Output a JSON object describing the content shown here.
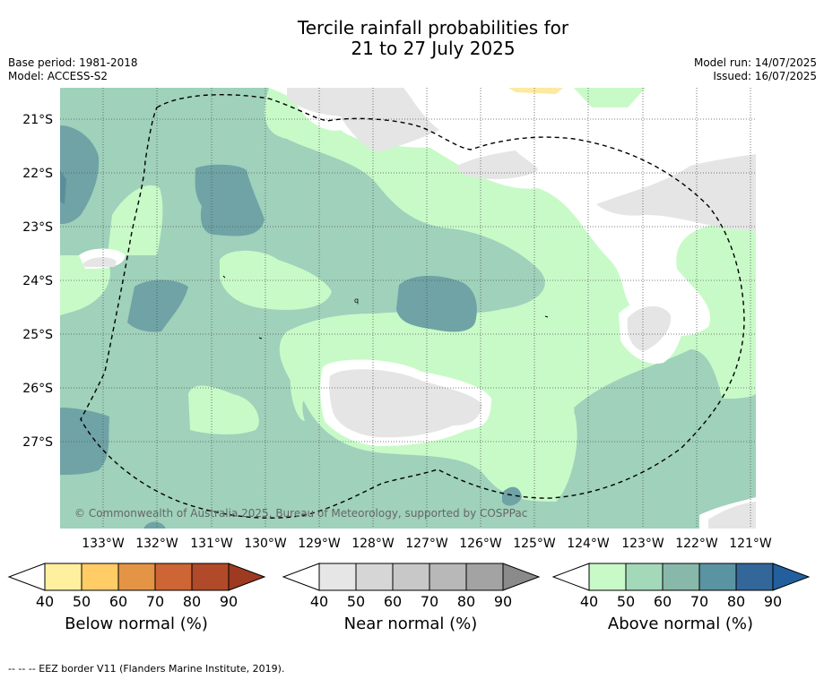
{
  "title": {
    "line1": "Tercile rainfall probabilities for",
    "line2": "21 to 27 July 2025"
  },
  "meta": {
    "base_period": "Base period: 1981-2018",
    "model": "Model: ACCESS-S2",
    "model_run": "Model run: 14/07/2025",
    "issued": "Issued: 16/07/2025"
  },
  "map": {
    "lat_labels": [
      "21°S",
      "22°S",
      "23°S",
      "24°S",
      "25°S",
      "26°S",
      "27°S"
    ],
    "lon_labels": [
      "133°W",
      "132°W",
      "131°W",
      "130°W",
      "129°W",
      "128°W",
      "127°W",
      "126°W",
      "125°W",
      "124°W",
      "123°W",
      "122°W",
      "121°W"
    ],
    "credit": "© Commonwealth of Australia 2025, Bureau of Meteorology, supported by COSPPac",
    "colors": {
      "above_50": "#c8fac8",
      "above_60": "#9fd1bb",
      "above_70": "#6fa3a5",
      "near_40": "#e5e5e5",
      "below_40": "#fde9a0",
      "eez_border": "#000000"
    }
  },
  "colorbars": [
    {
      "label": "Below normal (%)",
      "ticks": [
        "40",
        "50",
        "60",
        "70",
        "80",
        "90"
      ],
      "colors": [
        "#fff0a0",
        "#ffcc66",
        "#e39444",
        "#ce6535",
        "#b04a28",
        "#9e3a20"
      ]
    },
    {
      "label": "Near normal (%)",
      "ticks": [
        "40",
        "50",
        "60",
        "70",
        "80",
        "90"
      ],
      "colors": [
        "#e6e6e6",
        "#d6d6d6",
        "#c8c8c8",
        "#b8b8b8",
        "#a3a3a3",
        "#8a8a8a"
      ]
    },
    {
      "label": "Above normal (%)",
      "ticks": [
        "40",
        "50",
        "60",
        "70",
        "80",
        "90"
      ],
      "colors": [
        "#c8fac8",
        "#a3d9b9",
        "#88b8a9",
        "#5a94a2",
        "#336699",
        "#235f9c"
      ]
    }
  ],
  "footer": "--  --  -- EEZ border V11 (Flanders Marine Institute, 2019)."
}
